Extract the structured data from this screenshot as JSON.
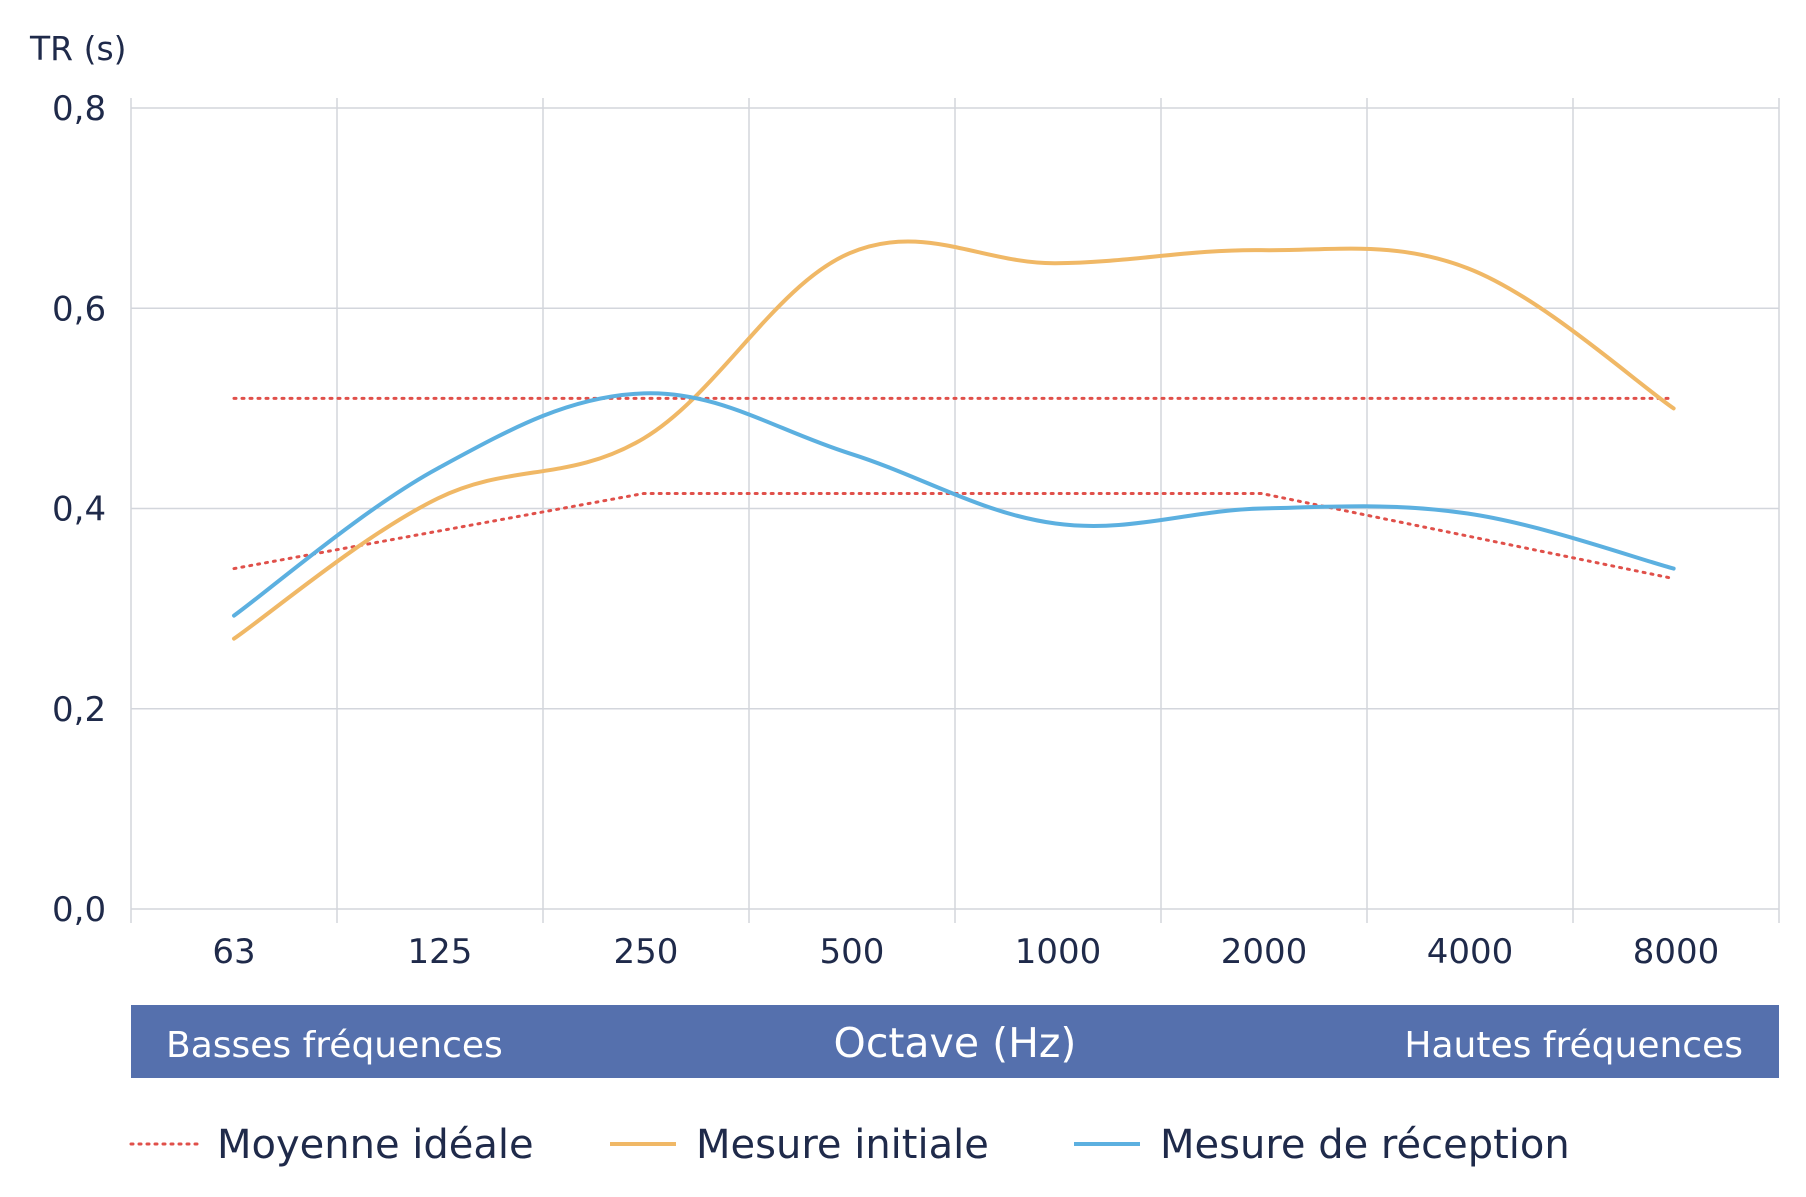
{
  "chart_data": {
    "type": "line",
    "ylabel": "TR (s)",
    "ylim": [
      0.0,
      0.8
    ],
    "y_ticks": [
      "0,0",
      "0,2",
      "0,4",
      "0,6",
      "0,8"
    ],
    "y_tick_values": [
      0.0,
      0.2,
      0.4,
      0.6,
      0.8
    ],
    "categories": [
      "63",
      "125",
      "250",
      "500",
      "1000",
      "2000",
      "4000",
      "8000"
    ],
    "band": {
      "left": "Basses fréquences",
      "center": "Octave (Hz)",
      "right": "Hautes fréquences"
    },
    "grid": true,
    "legend_position": "bottom",
    "series": [
      {
        "name": "Moyenne idéale",
        "style": "dotted",
        "color": "#e0504a",
        "sub_lines": [
          {
            "x": [
              63,
              8000
            ],
            "y": [
              0.51,
              0.51
            ]
          },
          {
            "x": [
              63,
              250,
              2000,
              8000
            ],
            "y": [
              0.34,
              0.415,
              0.415,
              0.33
            ]
          }
        ]
      },
      {
        "name": "Mesure initiale",
        "style": "solid",
        "color": "#f0b866",
        "x": [
          63,
          125,
          250,
          500,
          1000,
          2000,
          4000,
          8000
        ],
        "y": [
          0.27,
          0.41,
          0.47,
          0.655,
          0.645,
          0.658,
          0.64,
          0.5
        ]
      },
      {
        "name": "Mesure de réception",
        "style": "solid",
        "color": "#5cb0e0",
        "x": [
          63,
          125,
          250,
          500,
          1000,
          2000,
          4000,
          8000
        ],
        "y": [
          0.293,
          0.44,
          0.515,
          0.455,
          0.385,
          0.4,
          0.395,
          0.34
        ]
      }
    ]
  },
  "colors": {
    "axis_text": "#1f2a4a",
    "band_background": "#5570ad",
    "grid": "#d3d6dc"
  }
}
